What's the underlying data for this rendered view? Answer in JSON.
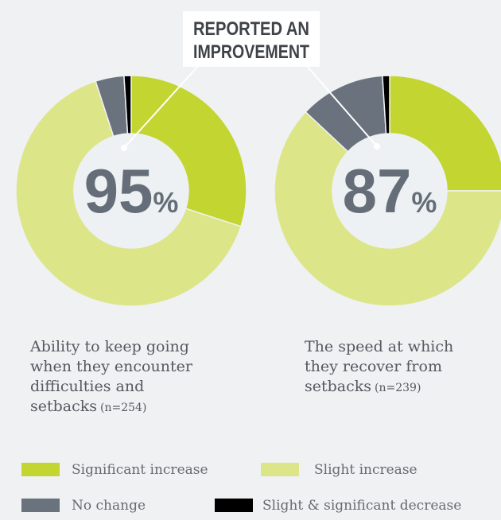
{
  "annotation": [
    "REPORTED AN",
    "IMPROVEMENT"
  ],
  "legend": {
    "labels": [
      "Significant increase",
      "Slight increase",
      "No change",
      "Slight & significant decrease"
    ],
    "colors": [
      "#c3d530",
      "#dde589",
      "#6a737d",
      "#000000"
    ]
  },
  "chart_data": [
    {
      "type": "donut",
      "values": [
        30,
        65,
        4,
        1
      ],
      "center_number": "95",
      "center_unit": "%",
      "caption": [
        "Ability to keep going",
        "when they encounter",
        "difficulties and",
        "setbacks"
      ],
      "note": "(n=254)"
    },
    {
      "type": "donut",
      "values": [
        25,
        62,
        12,
        1
      ],
      "center_number": "87",
      "center_unit": "%",
      "caption": [
        "The speed at which",
        "they recover from",
        "setbacks"
      ],
      "note": "(n=239)"
    }
  ]
}
